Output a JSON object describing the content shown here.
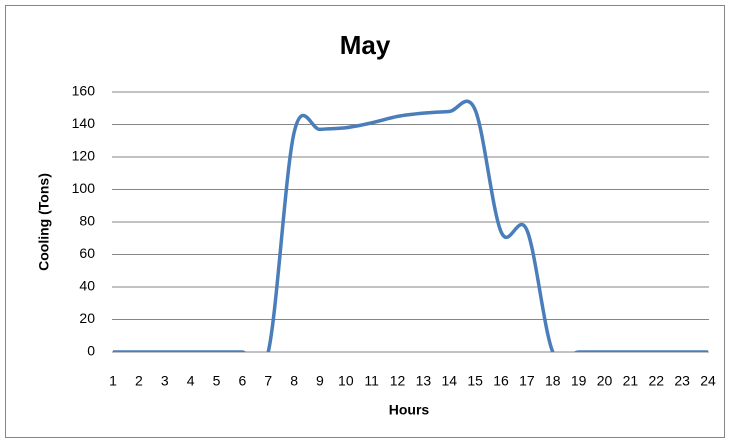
{
  "chart_data": {
    "type": "line",
    "title": "May",
    "x_label": "Hours",
    "y_label": "Cooling (Tons)",
    "categories": [
      1,
      2,
      3,
      4,
      5,
      6,
      7,
      8,
      9,
      10,
      11,
      12,
      13,
      14,
      15,
      16,
      17,
      18,
      19,
      20,
      21,
      22,
      23,
      24
    ],
    "series": [
      {
        "name": "Cooling",
        "color": "#4a7ebb",
        "values": [
          0,
          0,
          0,
          0,
          0,
          0,
          0,
          135,
          137,
          138,
          141,
          145,
          147,
          148,
          149,
          74,
          75,
          0,
          0,
          0,
          0,
          0,
          0,
          0
        ]
      }
    ],
    "ylim": [
      0,
      160
    ],
    "yticks": [
      0,
      20,
      40,
      60,
      80,
      100,
      120,
      140,
      160
    ],
    "grid": true,
    "smooth": true,
    "legend": false
  }
}
